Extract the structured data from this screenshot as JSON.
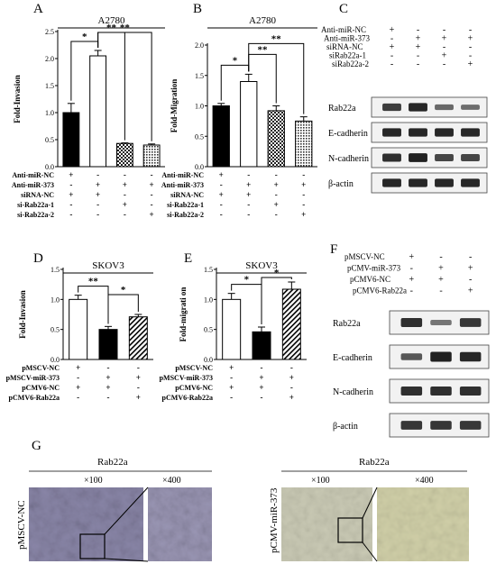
{
  "chart_data": [
    {
      "panel": "A",
      "type": "bar",
      "title": "A2780",
      "ylabel": "Fold-Invasion",
      "ylim": [
        0,
        2.5
      ],
      "yticks": [
        "0.0",
        "0.5",
        "1.0",
        "1.5",
        "2.0",
        "2.5"
      ],
      "values": [
        1.0,
        2.05,
        0.43,
        0.4
      ],
      "errors": [
        0.17,
        0.1,
        0.01,
        0.02
      ],
      "fills": [
        "black",
        "white",
        "check",
        "dots"
      ],
      "sig": [
        {
          "a": 0,
          "b": 1,
          "label": "*"
        },
        {
          "a": 1,
          "b": 2,
          "label": "**"
        },
        {
          "a": 1,
          "b": 3,
          "label": "**"
        }
      ],
      "rows": [
        {
          "label": "Anti-miR-NC",
          "marks": [
            "+",
            "-",
            "-",
            "-"
          ]
        },
        {
          "label": "Anti-miR-373",
          "marks": [
            "-",
            "+",
            "+",
            "+"
          ]
        },
        {
          "label": "siRNA-NC",
          "marks": [
            "+",
            "+",
            "-",
            "-"
          ]
        },
        {
          "label": "si-Rab22a-1",
          "marks": [
            "-",
            "-",
            "+",
            "-"
          ]
        },
        {
          "label": "si-Rab22a-2",
          "marks": [
            "-",
            "-",
            "-",
            "+"
          ]
        }
      ]
    },
    {
      "panel": "B",
      "type": "bar",
      "title": "A2780",
      "ylabel": "Fold-Migration",
      "ylim": [
        0,
        2.0
      ],
      "yticks": [
        "0.0",
        "0.5",
        "1.0",
        "1.5",
        "2.0"
      ],
      "values": [
        1.0,
        1.4,
        0.92,
        0.75
      ],
      "errors": [
        0.04,
        0.12,
        0.08,
        0.07
      ],
      "fills": [
        "black",
        "white",
        "check",
        "dots"
      ],
      "sig": [
        {
          "a": 0,
          "b": 1,
          "label": "*"
        },
        {
          "a": 1,
          "b": 2,
          "label": "**"
        },
        {
          "a": 1,
          "b": 3,
          "label": "**"
        }
      ],
      "rows": [
        {
          "label": "Anti-miR-NC",
          "marks": [
            "+",
            "-",
            "-",
            "-"
          ]
        },
        {
          "label": "Anti-miR-373",
          "marks": [
            "-",
            "+",
            "+",
            "+"
          ]
        },
        {
          "label": "siRNA-NC",
          "marks": [
            "+",
            "+",
            "-",
            "-"
          ]
        },
        {
          "label": "si-Rab22a-1",
          "marks": [
            "-",
            "-",
            "+",
            "-"
          ]
        },
        {
          "label": "si-Rab22a-2",
          "marks": [
            "-",
            "-",
            "-",
            "+"
          ]
        }
      ]
    },
    {
      "panel": "D",
      "type": "bar",
      "title": "SKOV3",
      "ylabel": "Fold-Invasion",
      "ylim": [
        0,
        1.5
      ],
      "yticks": [
        "0.0",
        "0.5",
        "1.0",
        "1.5"
      ],
      "values": [
        1.0,
        0.5,
        0.71
      ],
      "errors": [
        0.07,
        0.05,
        0.04
      ],
      "fills": [
        "white",
        "black",
        "hatch"
      ],
      "sig": [
        {
          "a": 0,
          "b": 1,
          "label": "**"
        },
        {
          "a": 1,
          "b": 2,
          "label": "*"
        }
      ],
      "rows": [
        {
          "label": "pMSCV-NC",
          "marks": [
            "+",
            "-",
            "-"
          ]
        },
        {
          "label": "pMSCV-miR-373",
          "marks": [
            "-",
            "+",
            "+"
          ]
        },
        {
          "label": "pCMV6-NC",
          "marks": [
            "+",
            "+",
            "-"
          ]
        },
        {
          "label": "pCMV6-Rab22a",
          "marks": [
            "-",
            "-",
            "+"
          ]
        }
      ]
    },
    {
      "panel": "E",
      "type": "bar",
      "title": "SKOV3",
      "ylabel": "Fold-migrati on",
      "ylim": [
        0,
        1.5
      ],
      "yticks": [
        "0.0",
        "0.5",
        "1.0",
        "1.5"
      ],
      "values": [
        1.0,
        0.46,
        1.17
      ],
      "errors": [
        0.1,
        0.08,
        0.12
      ],
      "fills": [
        "white",
        "black",
        "hatch"
      ],
      "sig": [
        {
          "a": 0,
          "b": 1,
          "label": "*"
        },
        {
          "a": 1,
          "b": 2,
          "label": "*"
        }
      ],
      "rows": [
        {
          "label": "pMSCV-NC",
          "marks": [
            "+",
            "-",
            "-"
          ]
        },
        {
          "label": "pMSCV-miR-373",
          "marks": [
            "-",
            "+",
            "+"
          ]
        },
        {
          "label": "pCMV6-NC",
          "marks": [
            "+",
            "+",
            "-"
          ]
        },
        {
          "label": "pCMV6-Rab22a",
          "marks": [
            "-",
            "-",
            "+"
          ]
        }
      ]
    }
  ],
  "blots": [
    {
      "panel": "C",
      "rows": [
        {
          "label": "Anti-miR-NC",
          "marks": [
            "+",
            "-",
            "-",
            "-"
          ]
        },
        {
          "label": "Anti-miR-373",
          "marks": [
            "-",
            "+",
            "+",
            "+"
          ]
        },
        {
          "label": "siRNA-NC",
          "marks": [
            "+",
            "+",
            "-",
            "-"
          ]
        },
        {
          "label": "siRab22a-1",
          "marks": [
            "-",
            "-",
            "+",
            "-"
          ]
        },
        {
          "label": "siRab22a-2",
          "marks": [
            "-",
            "-",
            "-",
            "+"
          ]
        }
      ],
      "bands": [
        {
          "label": "Rab22a",
          "intensity": [
            0.75,
            0.9,
            0.45,
            0.4
          ]
        },
        {
          "label": "E-cadherin",
          "intensity": [
            0.9,
            0.9,
            0.9,
            0.9
          ]
        },
        {
          "label": "N-cadherin",
          "intensity": [
            0.85,
            0.95,
            0.7,
            0.7
          ]
        },
        {
          "label": "β-actin",
          "intensity": [
            0.9,
            0.9,
            0.9,
            0.9
          ]
        }
      ]
    },
    {
      "panel": "F",
      "rows": [
        {
          "label": "pMSCV-NC",
          "marks": [
            "+",
            "-",
            "-"
          ]
        },
        {
          "label": "pCMV-miR-373",
          "marks": [
            "-",
            "+",
            "+"
          ]
        },
        {
          "label": "pCMV6-NC",
          "marks": [
            "+",
            "+",
            "-"
          ]
        },
        {
          "label": "pCMV6-Rab22a",
          "marks": [
            "-",
            "-",
            "+"
          ]
        }
      ],
      "bands": [
        {
          "label": "Rab22a",
          "intensity": [
            0.85,
            0.35,
            0.8
          ]
        },
        {
          "label": "E-cadherin",
          "intensity": [
            0.55,
            0.95,
            0.9
          ]
        },
        {
          "label": "N-cadherin",
          "intensity": [
            0.85,
            0.85,
            0.85
          ]
        },
        {
          "label": "β-actin",
          "intensity": [
            0.8,
            0.8,
            0.8
          ]
        }
      ]
    }
  ],
  "ihc": {
    "panel": "G",
    "groups": [
      {
        "title": "Rab22a",
        "side": "pMSCV-NC",
        "mag1": "×100",
        "mag2": "×400"
      },
      {
        "title": "Rab22a",
        "side": "pCMV-miR-373",
        "mag1": "×100",
        "mag2": "×400"
      }
    ]
  },
  "colors": {
    "ihc_nc": "#8a86a8",
    "ihc_373": "#c9c9b4"
  }
}
